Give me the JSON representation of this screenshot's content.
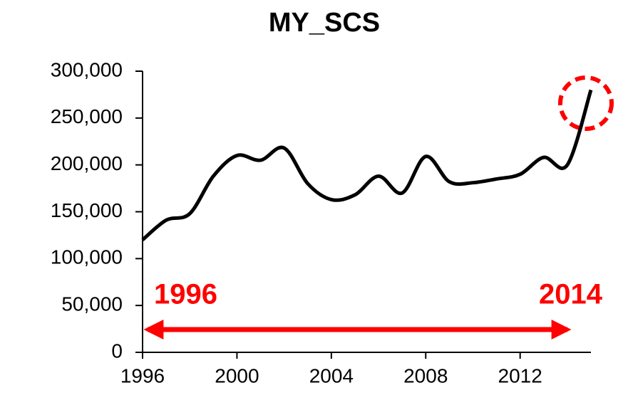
{
  "chart_data": {
    "type": "line",
    "title": "MY_SCS",
    "x": [
      1996,
      1997,
      1998,
      1999,
      2000,
      2001,
      2002,
      2003,
      2004,
      2005,
      2006,
      2007,
      2008,
      2009,
      2010,
      2011,
      2012,
      2013,
      2014,
      2015
    ],
    "series": [
      {
        "name": "MY_SCS",
        "color": "#000000",
        "values": [
          120000,
          141000,
          148000,
          188000,
          210000,
          205000,
          218000,
          180000,
          163000,
          168000,
          188000,
          170000,
          209000,
          182000,
          181000,
          185000,
          190000,
          208000,
          200000,
          280000
        ]
      }
    ],
    "xlim": [
      1996,
      2015
    ],
    "xticks": [
      1996,
      2000,
      2004,
      2008,
      2012
    ],
    "ylim": [
      0,
      300000
    ],
    "yticks": [
      0,
      {
        "value": 50000,
        "label": "50,000"
      },
      {
        "value": 100000,
        "label": "100,000"
      },
      {
        "value": 150000,
        "label": "150,000"
      },
      {
        "value": 200000,
        "label": "200,000"
      },
      {
        "value": 250000,
        "label": "250,000"
      },
      {
        "value": 300000,
        "label": "300,000"
      }
    ],
    "annotations": [
      "1996",
      "2014"
    ],
    "annotation_color": "#ff0000",
    "grid": false
  }
}
